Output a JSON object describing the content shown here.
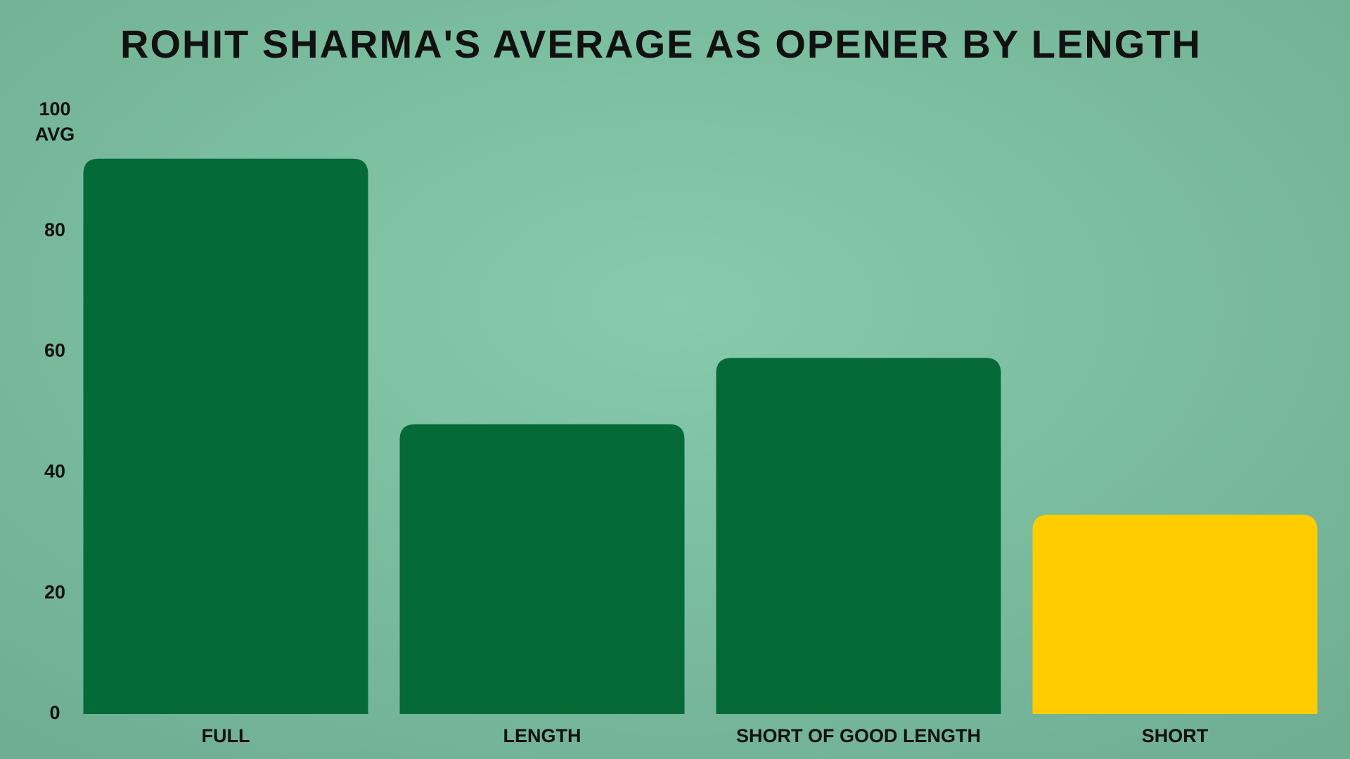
{
  "chart_data": {
    "type": "bar",
    "title": "ROHIT SHARMA'S AVERAGE AS OPENER BY LENGTH",
    "y_label": "AVG",
    "categories": [
      "FULL",
      "LENGTH",
      "SHORT OF GOOD LENGTH",
      "SHORT"
    ],
    "values": [
      92,
      48,
      59,
      33
    ],
    "colors": [
      "#046a38",
      "#046a38",
      "#046a38",
      "#ffcc00"
    ],
    "ylim": [
      0,
      100
    ],
    "yticks": [
      0,
      20,
      40,
      60,
      80,
      100
    ],
    "grid": false
  }
}
